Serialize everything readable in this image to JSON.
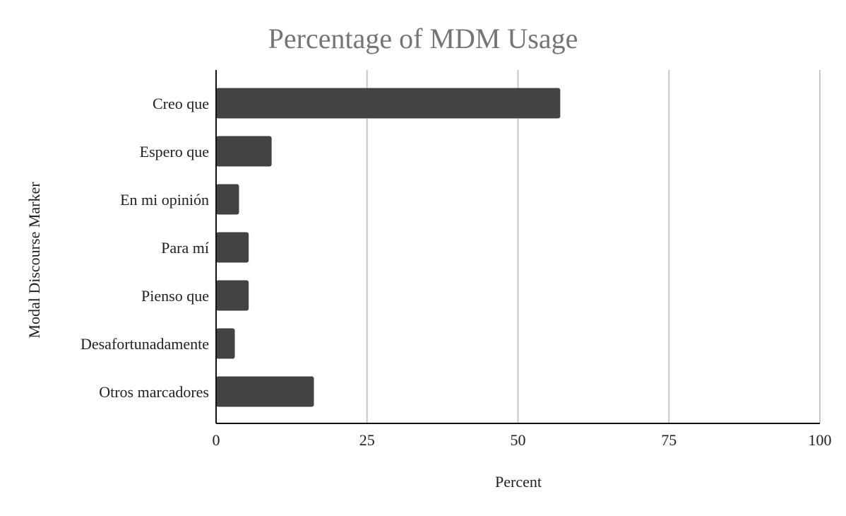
{
  "chart_data": {
    "type": "bar",
    "orientation": "horizontal",
    "title": "Percentage of MDM Usage",
    "xlabel": "Percent",
    "ylabel": "Modal Discourse Marker",
    "categories": [
      "Creo que",
      "Espero que",
      "En mi opinión",
      "Para mí",
      "Pienso que",
      "Desafortunadamente",
      "Otros marcadores"
    ],
    "values": [
      57,
      9.2,
      3.8,
      5.4,
      5.4,
      3.1,
      16.2
    ],
    "xlim": [
      0,
      100
    ],
    "xticks": [
      0,
      25,
      50,
      75,
      100
    ],
    "grid": true,
    "legend": "none",
    "colors": {
      "bar": "#434343",
      "title": "#757575",
      "grid": "#c8c8c8"
    }
  }
}
